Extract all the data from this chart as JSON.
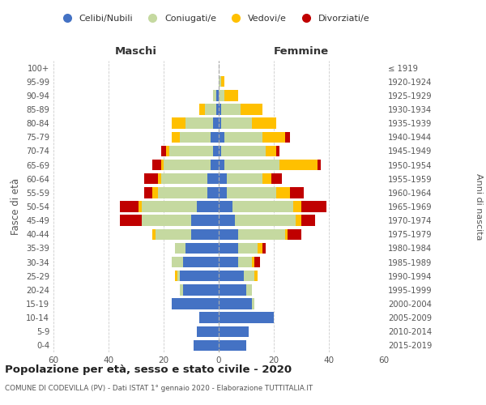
{
  "age_groups_bottom_to_top": [
    "0-4",
    "5-9",
    "10-14",
    "15-19",
    "20-24",
    "25-29",
    "30-34",
    "35-39",
    "40-44",
    "45-49",
    "50-54",
    "55-59",
    "60-64",
    "65-69",
    "70-74",
    "75-79",
    "80-84",
    "85-89",
    "90-94",
    "95-99",
    "100+"
  ],
  "birth_years_bottom_to_top": [
    "2015-2019",
    "2010-2014",
    "2005-2009",
    "2000-2004",
    "1995-1999",
    "1990-1994",
    "1985-1989",
    "1980-1984",
    "1975-1979",
    "1970-1974",
    "1965-1969",
    "1960-1964",
    "1955-1959",
    "1950-1954",
    "1945-1949",
    "1940-1944",
    "1935-1939",
    "1930-1934",
    "1925-1929",
    "1920-1924",
    "≤ 1919"
  ],
  "male": {
    "celibi": [
      9,
      8,
      7,
      17,
      13,
      14,
      13,
      12,
      10,
      10,
      8,
      4,
      4,
      3,
      2,
      3,
      2,
      1,
      1,
      0,
      0
    ],
    "coniugati": [
      0,
      0,
      0,
      0,
      1,
      1,
      4,
      4,
      13,
      18,
      20,
      18,
      17,
      17,
      16,
      11,
      10,
      4,
      1,
      0,
      0
    ],
    "vedovi": [
      0,
      0,
      0,
      0,
      0,
      1,
      0,
      0,
      1,
      0,
      1,
      2,
      1,
      1,
      1,
      3,
      5,
      2,
      0,
      0,
      0
    ],
    "divorziati": [
      0,
      0,
      0,
      0,
      0,
      0,
      0,
      0,
      0,
      8,
      7,
      3,
      5,
      3,
      2,
      0,
      0,
      0,
      0,
      0,
      0
    ]
  },
  "female": {
    "nubili": [
      10,
      11,
      20,
      12,
      10,
      9,
      7,
      7,
      7,
      6,
      5,
      3,
      3,
      2,
      1,
      2,
      1,
      1,
      0,
      0,
      0
    ],
    "coniugate": [
      0,
      0,
      0,
      1,
      2,
      4,
      5,
      7,
      17,
      22,
      22,
      18,
      13,
      20,
      16,
      14,
      11,
      7,
      2,
      1,
      0
    ],
    "vedove": [
      0,
      0,
      0,
      0,
      0,
      1,
      1,
      2,
      1,
      2,
      3,
      5,
      3,
      14,
      4,
      8,
      9,
      8,
      5,
      1,
      0
    ],
    "divorziate": [
      0,
      0,
      0,
      0,
      0,
      0,
      2,
      1,
      5,
      5,
      9,
      5,
      4,
      1,
      1,
      2,
      0,
      0,
      0,
      0,
      0
    ]
  },
  "colors": {
    "celibi": "#4472c4",
    "coniugati": "#c5d9a0",
    "vedovi": "#ffc000",
    "divorziati": "#c00000"
  },
  "xlim": 60,
  "title": "Popolazione per età, sesso e stato civile - 2020",
  "subtitle": "COMUNE DI CODEVILLA (PV) - Dati ISTAT 1° gennaio 2020 - Elaborazione TUTTITALIA.IT",
  "ylabel_left": "Fasce di età",
  "ylabel_right": "Anni di nascita",
  "xlabel_left": "Maschi",
  "xlabel_right": "Femmine",
  "legend_labels": [
    "Celibi/Nubili",
    "Coniugati/e",
    "Vedovi/e",
    "Divorziati/e"
  ],
  "background_color": "#ffffff",
  "grid_color": "#cccccc"
}
